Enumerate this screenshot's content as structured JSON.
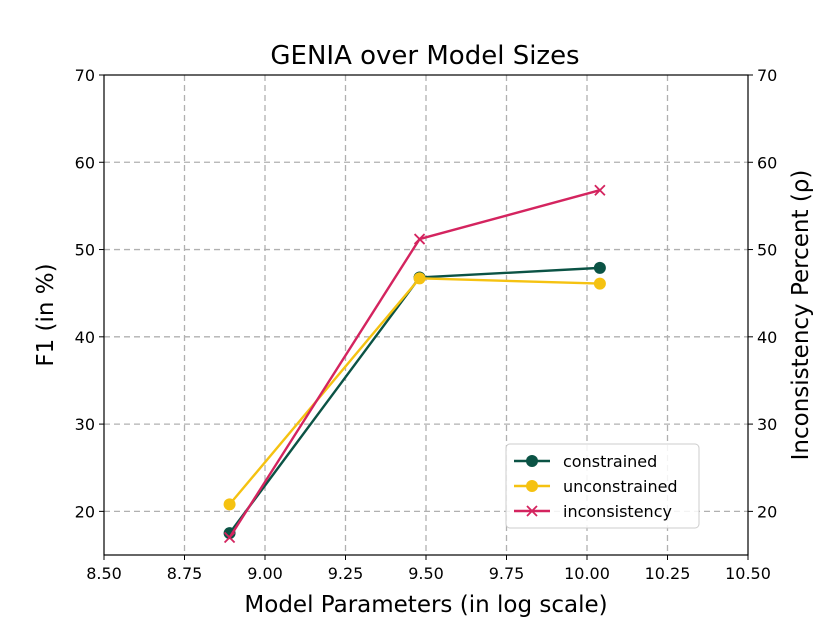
{
  "chart_data": {
    "type": "line",
    "title": "GENIA over Model Sizes",
    "xlabel": "Model Parameters (in log scale)",
    "ylabel": "F1 (in %)",
    "ylabel_right": "Inconsistency Percent (ρ)",
    "xlim": [
      8.5,
      10.5
    ],
    "ylim": [
      15,
      70
    ],
    "xticks": [
      "8.50",
      "8.75",
      "9.00",
      "9.25",
      "9.50",
      "9.75",
      "10.00",
      "10.25",
      "10.50"
    ],
    "xtick_values": [
      8.5,
      8.75,
      9.0,
      9.25,
      9.5,
      9.75,
      10.0,
      10.25,
      10.5
    ],
    "yticks": [
      "20",
      "30",
      "40",
      "50",
      "60",
      "70"
    ],
    "ytick_values": [
      20,
      30,
      40,
      50,
      60,
      70
    ],
    "grid": true,
    "legend_position": "lower-right",
    "x": [
      8.89,
      9.48,
      10.04
    ],
    "series": [
      {
        "name": "constrained",
        "values": [
          17.5,
          46.8,
          47.9
        ],
        "color": "#0b5345",
        "marker": "circle"
      },
      {
        "name": "unconstrained",
        "values": [
          20.8,
          46.7,
          46.1
        ],
        "color": "#f5c211",
        "marker": "circle"
      },
      {
        "name": "inconsistency",
        "values": [
          17.0,
          51.2,
          56.8
        ],
        "color": "#d4245f",
        "marker": "x"
      }
    ]
  }
}
